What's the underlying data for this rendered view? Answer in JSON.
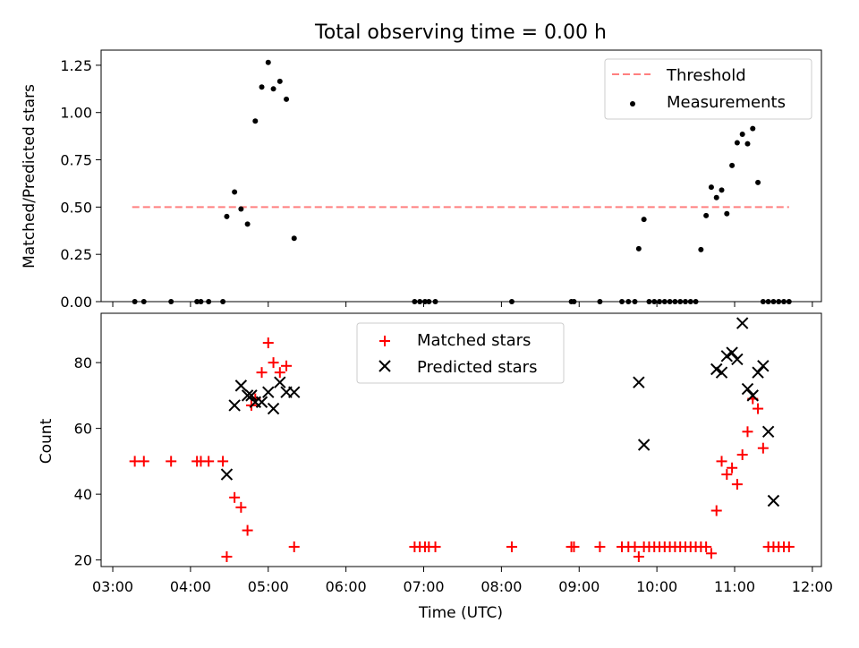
{
  "figure": {
    "title": "Total observing time = 0.00 h"
  },
  "chart_data": [
    {
      "panel": "top",
      "type": "scatter",
      "ylabel": "Matched/Predicted stars",
      "xlabel": "",
      "ylim": [
        0,
        1.33
      ],
      "yticks": [
        "0.00",
        "0.25",
        "0.50",
        "0.75",
        "1.00",
        "1.25"
      ],
      "legend": {
        "placement": "top-right",
        "entries": [
          "Threshold",
          "Measurements"
        ]
      },
      "threshold": {
        "name": "Threshold",
        "value": 0.5,
        "x_start": "03:15",
        "x_end": "11:42",
        "color": "#ff7f7f"
      },
      "series": [
        {
          "name": "Measurements",
          "x": [
            "03:17",
            "03:24",
            "03:45",
            "04:05",
            "04:08",
            "04:14",
            "04:25",
            "04:28",
            "04:34",
            "04:39",
            "04:44",
            "04:50",
            "04:55",
            "05:00",
            "05:04",
            "05:09",
            "05:14",
            "05:20",
            "06:53",
            "06:57",
            "07:01",
            "07:04",
            "07:09",
            "08:08",
            "08:54",
            "08:56",
            "09:16",
            "09:33",
            "09:38",
            "09:43",
            "09:46",
            "09:50",
            "09:54",
            "09:58",
            "10:02",
            "10:06",
            "10:10",
            "10:14",
            "10:18",
            "10:22",
            "10:26",
            "10:30",
            "10:34",
            "10:38",
            "10:42",
            "10:46",
            "10:50",
            "10:54",
            "10:58",
            "11:02",
            "11:06",
            "11:10",
            "11:14",
            "11:18",
            "11:22",
            "11:26",
            "11:30",
            "11:34",
            "11:38",
            "11:42"
          ],
          "y": [
            0,
            0,
            0,
            0,
            0,
            0,
            0,
            0.45,
            0.58,
            0.49,
            0.41,
            0.955,
            1.135,
            1.265,
            1.125,
            1.165,
            1.07,
            0.335,
            0,
            0,
            0,
            0,
            0,
            0,
            0,
            0,
            0,
            0,
            0,
            0,
            0.28,
            0.435,
            0,
            0,
            0,
            0,
            0,
            0,
            0,
            0,
            0,
            0,
            0.275,
            0.455,
            0.605,
            0.55,
            0.59,
            0.465,
            0.72,
            0.84,
            0.885,
            0.835,
            0.915,
            0.63,
            0,
            0,
            0,
            0,
            0,
            0
          ]
        }
      ]
    },
    {
      "panel": "bottom",
      "type": "scatter",
      "ylabel": "Count",
      "xlabel": "Time (UTC)",
      "ylim": [
        18,
        95
      ],
      "yticks": [
        "20",
        "40",
        "60",
        "80"
      ],
      "xticks": [
        "03:00",
        "04:00",
        "05:00",
        "06:00",
        "07:00",
        "08:00",
        "09:00",
        "10:00",
        "11:00",
        "12:00"
      ],
      "xlim": [
        "02:51",
        "12:07"
      ],
      "legend": {
        "placement": "top-center",
        "entries": [
          "Matched stars",
          "Predicted stars"
        ]
      },
      "series": [
        {
          "name": "Matched stars",
          "marker": "+",
          "color": "#ff0000",
          "x": [
            "03:17",
            "03:24",
            "03:45",
            "04:05",
            "04:08",
            "04:14",
            "04:25",
            "04:28",
            "04:34",
            "04:39",
            "04:44",
            "04:47",
            "04:50",
            "04:55",
            "05:00",
            "05:04",
            "05:09",
            "05:14",
            "05:20",
            "06:53",
            "06:57",
            "07:01",
            "07:04",
            "07:09",
            "08:08",
            "08:54",
            "08:56",
            "09:16",
            "09:33",
            "09:38",
            "09:43",
            "09:46",
            "09:50",
            "09:54",
            "09:58",
            "10:02",
            "10:06",
            "10:10",
            "10:14",
            "10:18",
            "10:22",
            "10:26",
            "10:30",
            "10:34",
            "10:38",
            "10:42",
            "10:46",
            "10:50",
            "10:54",
            "10:58",
            "11:02",
            "11:06",
            "11:10",
            "11:14",
            "11:18",
            "11:22",
            "11:26",
            "11:30",
            "11:34",
            "11:38",
            "11:42"
          ],
          "y": [
            50,
            50,
            50,
            50,
            50,
            50,
            50,
            21,
            39,
            36,
            29,
            67,
            69,
            77,
            86,
            80,
            77,
            79,
            24,
            24,
            24,
            24,
            24,
            24,
            24,
            24,
            24,
            24,
            24,
            24,
            24,
            21,
            24,
            24,
            24,
            24,
            24,
            24,
            24,
            24,
            24,
            24,
            24,
            24,
            24,
            22,
            35,
            50,
            46,
            48,
            43,
            52,
            59,
            69,
            66,
            54,
            24,
            24,
            24,
            24,
            24
          ]
        },
        {
          "name": "Predicted stars",
          "marker": "x",
          "color": "#000000",
          "x": [
            "04:28",
            "04:34",
            "04:39",
            "04:44",
            "04:47",
            "04:50",
            "04:55",
            "05:00",
            "05:04",
            "05:09",
            "05:14",
            "05:20",
            "09:46",
            "09:50",
            "10:46",
            "10:50",
            "10:54",
            "10:58",
            "11:02",
            "11:06",
            "11:10",
            "11:14",
            "11:18",
            "11:22",
            "11:26",
            "11:30"
          ],
          "y": [
            46,
            67,
            73,
            70,
            70,
            68,
            68,
            71,
            66,
            74,
            71,
            71,
            74,
            55,
            78,
            77,
            82,
            83,
            81,
            92,
            72,
            70,
            77,
            79,
            59,
            38
          ]
        }
      ]
    }
  ]
}
